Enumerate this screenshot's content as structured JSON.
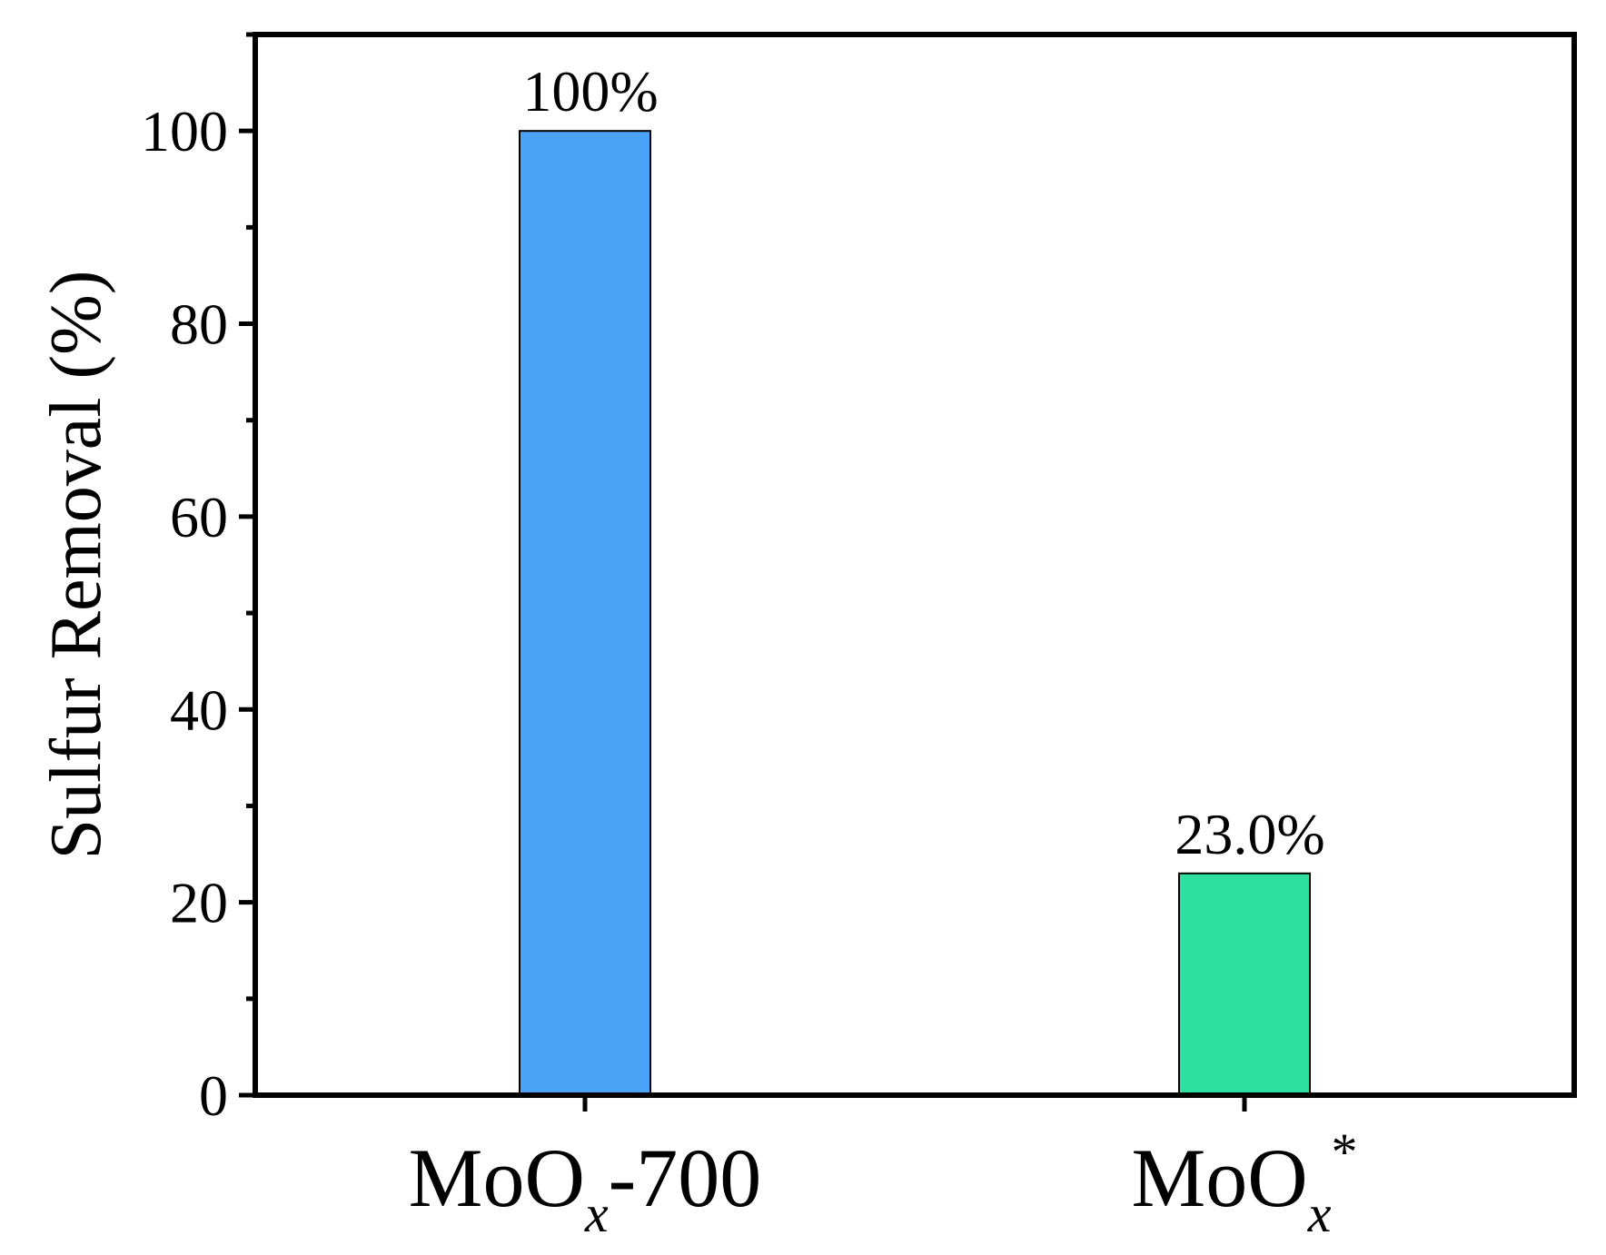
{
  "chart_data": {
    "type": "bar",
    "categories": [
      {
        "base": "MoO",
        "sub": "x",
        "suffix": "-700",
        "sup": ""
      },
      {
        "base": "MoO",
        "sub": "x",
        "suffix": "",
        "sup": "*"
      }
    ],
    "values": [
      100,
      23.0
    ],
    "data_labels": [
      "100%",
      "23.0%"
    ],
    "colors": [
      "#4ba3f7",
      "#2ee09f"
    ],
    "ylabel": "Sulfur Removal (%)",
    "xlabel": "",
    "title": "",
    "ylim": [
      0,
      110
    ],
    "yticks": [
      0,
      20,
      40,
      60,
      80,
      100
    ],
    "yticks_minor": [
      10,
      30,
      50,
      70,
      90,
      110
    ],
    "grid": false,
    "legend": "none"
  }
}
